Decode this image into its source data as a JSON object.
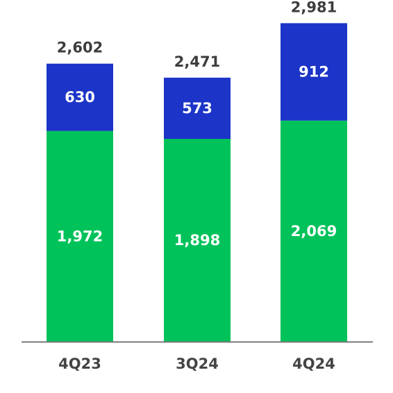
{
  "chart_data": {
    "type": "bar",
    "stacked": true,
    "categories": [
      "4Q23",
      "3Q24",
      "4Q24"
    ],
    "series": [
      {
        "values": [
          1972,
          1898,
          2069
        ],
        "labels": [
          "1,972",
          "1,898",
          "2,069"
        ],
        "color": "#00c25a"
      },
      {
        "values": [
          630,
          573,
          912
        ],
        "labels": [
          "630",
          "573",
          "912"
        ],
        "color": "#1c34c8"
      }
    ],
    "totals": [
      2602,
      2471,
      2981
    ],
    "total_labels": [
      "2,602",
      "2,471",
      "2,981"
    ],
    "title": "",
    "xlabel": "",
    "ylabel": "",
    "ylim": [
      0,
      4800
    ],
    "grid": false,
    "legend": "none"
  }
}
